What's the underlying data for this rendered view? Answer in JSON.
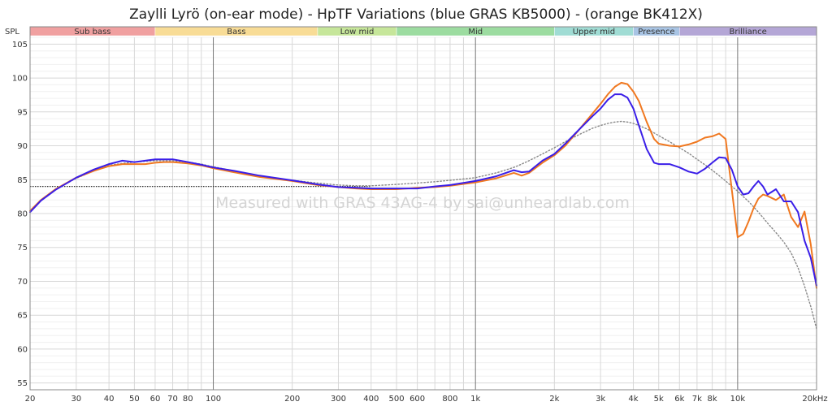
{
  "chart_data": {
    "type": "line",
    "title": "Zaylli Lyrö (on-ear mode) - HpTF Variations (blue GRAS KB5000) - (orange BK412X)",
    "ylabel": "SPL",
    "xlabel": "",
    "x_scale": "log",
    "xlim": [
      20,
      20000
    ],
    "ylim": [
      54,
      106
    ],
    "grid": true,
    "watermark": "Measured with GRAS 43AG-4 by sai@unheardlab.com",
    "y_ticks": [
      55,
      60,
      65,
      70,
      75,
      80,
      85,
      90,
      95,
      100,
      105
    ],
    "x_ticks": [
      {
        "v": 20,
        "label": "20"
      },
      {
        "v": 30,
        "label": "30"
      },
      {
        "v": 40,
        "label": "40"
      },
      {
        "v": 50,
        "label": "50"
      },
      {
        "v": 60,
        "label": "60"
      },
      {
        "v": 70,
        "label": "70"
      },
      {
        "v": 80,
        "label": "80"
      },
      {
        "v": 100,
        "label": "100"
      },
      {
        "v": 200,
        "label": "200"
      },
      {
        "v": 300,
        "label": "300"
      },
      {
        "v": 400,
        "label": "400"
      },
      {
        "v": 500,
        "label": "500"
      },
      {
        "v": 600,
        "label": "600"
      },
      {
        "v": 800,
        "label": "800"
      },
      {
        "v": 1000,
        "label": "1k"
      },
      {
        "v": 2000,
        "label": "2k"
      },
      {
        "v": 3000,
        "label": "3k"
      },
      {
        "v": 4000,
        "label": "4k"
      },
      {
        "v": 5000,
        "label": "5k"
      },
      {
        "v": 6000,
        "label": "6k"
      },
      {
        "v": 7000,
        "label": "7k"
      },
      {
        "v": 8000,
        "label": "8k"
      },
      {
        "v": 10000,
        "label": "10k"
      },
      {
        "v": 20000,
        "label": "20kHz"
      }
    ],
    "bands": [
      {
        "label": "Sub bass",
        "from": 20,
        "to": 60,
        "color": "#f0a0a0"
      },
      {
        "label": "Bass",
        "from": 60,
        "to": 250,
        "color": "#f8dc96"
      },
      {
        "label": "Low mid",
        "from": 250,
        "to": 500,
        "color": "#c6e69a"
      },
      {
        "label": "Mid",
        "from": 500,
        "to": 2000,
        "color": "#9cdca0"
      },
      {
        "label": "Upper mid",
        "from": 2000,
        "to": 4000,
        "color": "#a0dcd4"
      },
      {
        "label": "Presence",
        "from": 4000,
        "to": 6000,
        "color": "#a8c4e4"
      },
      {
        "label": "Brilliance",
        "from": 6000,
        "to": 20000,
        "color": "#b4a6d6"
      }
    ],
    "reference_level": 84,
    "series": [
      {
        "color": "#3a1ee8",
        "x": [
          20,
          22,
          25,
          30,
          35,
          40,
          45,
          50,
          55,
          60,
          65,
          70,
          80,
          90,
          100,
          120,
          150,
          200,
          250,
          300,
          350,
          400,
          500,
          600,
          700,
          800,
          1000,
          1200,
          1400,
          1500,
          1600,
          1800,
          2000,
          2200,
          2500,
          2800,
          3000,
          3200,
          3400,
          3600,
          3800,
          4000,
          4200,
          4500,
          4800,
          5000,
          5500,
          6000,
          6500,
          7000,
          7500,
          8000,
          8500,
          9000,
          9500,
          10000,
          10500,
          11000,
          11500,
          12000,
          12500,
          13000,
          14000,
          15000,
          16000,
          17000,
          18000,
          19000,
          20000
        ],
        "y": [
          80.2,
          81.9,
          83.5,
          85.3,
          86.5,
          87.3,
          87.8,
          87.6,
          87.8,
          88.0,
          88.0,
          88.0,
          87.6,
          87.2,
          86.8,
          86.3,
          85.6,
          84.9,
          84.3,
          83.9,
          83.8,
          83.7,
          83.7,
          83.7,
          84.0,
          84.2,
          84.8,
          85.5,
          86.4,
          86.1,
          86.2,
          87.8,
          88.8,
          90.3,
          92.5,
          94.4,
          95.5,
          96.8,
          97.6,
          97.6,
          97.1,
          95.5,
          93.0,
          89.5,
          87.5,
          87.3,
          87.3,
          86.8,
          86.2,
          85.9,
          86.6,
          87.5,
          88.3,
          88.2,
          86.5,
          84.0,
          82.8,
          83.0,
          84.0,
          84.8,
          84.0,
          82.8,
          83.6,
          81.8,
          81.8,
          80.2,
          76.0,
          73.5,
          69.4
        ]
      },
      {
        "color": "#f07820",
        "x": [
          20,
          22,
          25,
          30,
          35,
          40,
          45,
          50,
          55,
          60,
          65,
          70,
          80,
          90,
          100,
          120,
          150,
          200,
          250,
          300,
          350,
          400,
          500,
          600,
          700,
          800,
          1000,
          1200,
          1400,
          1500,
          1600,
          1800,
          2000,
          2200,
          2500,
          2800,
          3000,
          3200,
          3400,
          3600,
          3800,
          4000,
          4200,
          4500,
          4800,
          5000,
          5500,
          6000,
          6500,
          7000,
          7500,
          8000,
          8500,
          9000,
          9500,
          10000,
          10500,
          11000,
          11500,
          12000,
          12500,
          13000,
          14000,
          15000,
          16000,
          17000,
          18000,
          19000,
          20000
        ],
        "y": [
          80.4,
          82.0,
          83.6,
          85.3,
          86.3,
          87.0,
          87.3,
          87.3,
          87.3,
          87.5,
          87.6,
          87.6,
          87.4,
          87.1,
          86.7,
          86.1,
          85.4,
          84.8,
          84.2,
          83.9,
          83.7,
          83.6,
          83.6,
          83.8,
          83.9,
          84.1,
          84.6,
          85.2,
          86.0,
          85.6,
          86.0,
          87.5,
          88.6,
          90.0,
          92.5,
          94.8,
          96.2,
          97.6,
          98.7,
          99.3,
          99.1,
          98.0,
          96.6,
          93.5,
          91.0,
          90.3,
          90.0,
          89.9,
          90.2,
          90.6,
          91.2,
          91.4,
          91.8,
          91.0,
          83.5,
          76.5,
          77.0,
          78.8,
          80.8,
          82.2,
          82.8,
          82.6,
          82.0,
          82.8,
          79.5,
          78.0,
          80.3,
          75.5,
          69.0
        ]
      },
      {
        "color": "#888888",
        "dashed": true,
        "x": [
          20,
          22,
          25,
          30,
          35,
          40,
          45,
          50,
          55,
          60,
          65,
          70,
          80,
          90,
          100,
          120,
          150,
          200,
          250,
          300,
          350,
          400,
          500,
          600,
          700,
          800,
          1000,
          1200,
          1400,
          1500,
          1600,
          1800,
          2000,
          2200,
          2500,
          2800,
          3000,
          3200,
          3400,
          3600,
          3800,
          4000,
          4200,
          4500,
          4800,
          5000,
          5500,
          6000,
          6500,
          7000,
          7500,
          8000,
          8500,
          9000,
          9500,
          10000,
          10500,
          11000,
          11500,
          12000,
          12500,
          13000,
          14000,
          15000,
          16000,
          17000,
          18000,
          19000,
          20000
        ],
        "y": [
          80.4,
          82.0,
          83.6,
          85.2,
          86.3,
          87.1,
          87.4,
          87.6,
          87.7,
          87.8,
          87.8,
          87.8,
          87.6,
          87.3,
          86.9,
          86.3,
          85.6,
          84.9,
          84.5,
          84.2,
          84.1,
          84.1,
          84.3,
          84.5,
          84.7,
          84.9,
          85.3,
          86.0,
          86.8,
          87.3,
          87.8,
          88.8,
          89.7,
          90.6,
          91.7,
          92.6,
          93.0,
          93.3,
          93.5,
          93.6,
          93.5,
          93.3,
          93.0,
          92.5,
          91.9,
          91.5,
          90.6,
          89.7,
          88.9,
          88.0,
          87.2,
          86.4,
          85.6,
          84.8,
          84.0,
          83.3,
          82.5,
          81.8,
          81.0,
          80.2,
          79.4,
          78.6,
          77.2,
          75.8,
          74.2,
          72.0,
          69.3,
          66.3,
          63.0
        ]
      }
    ]
  }
}
